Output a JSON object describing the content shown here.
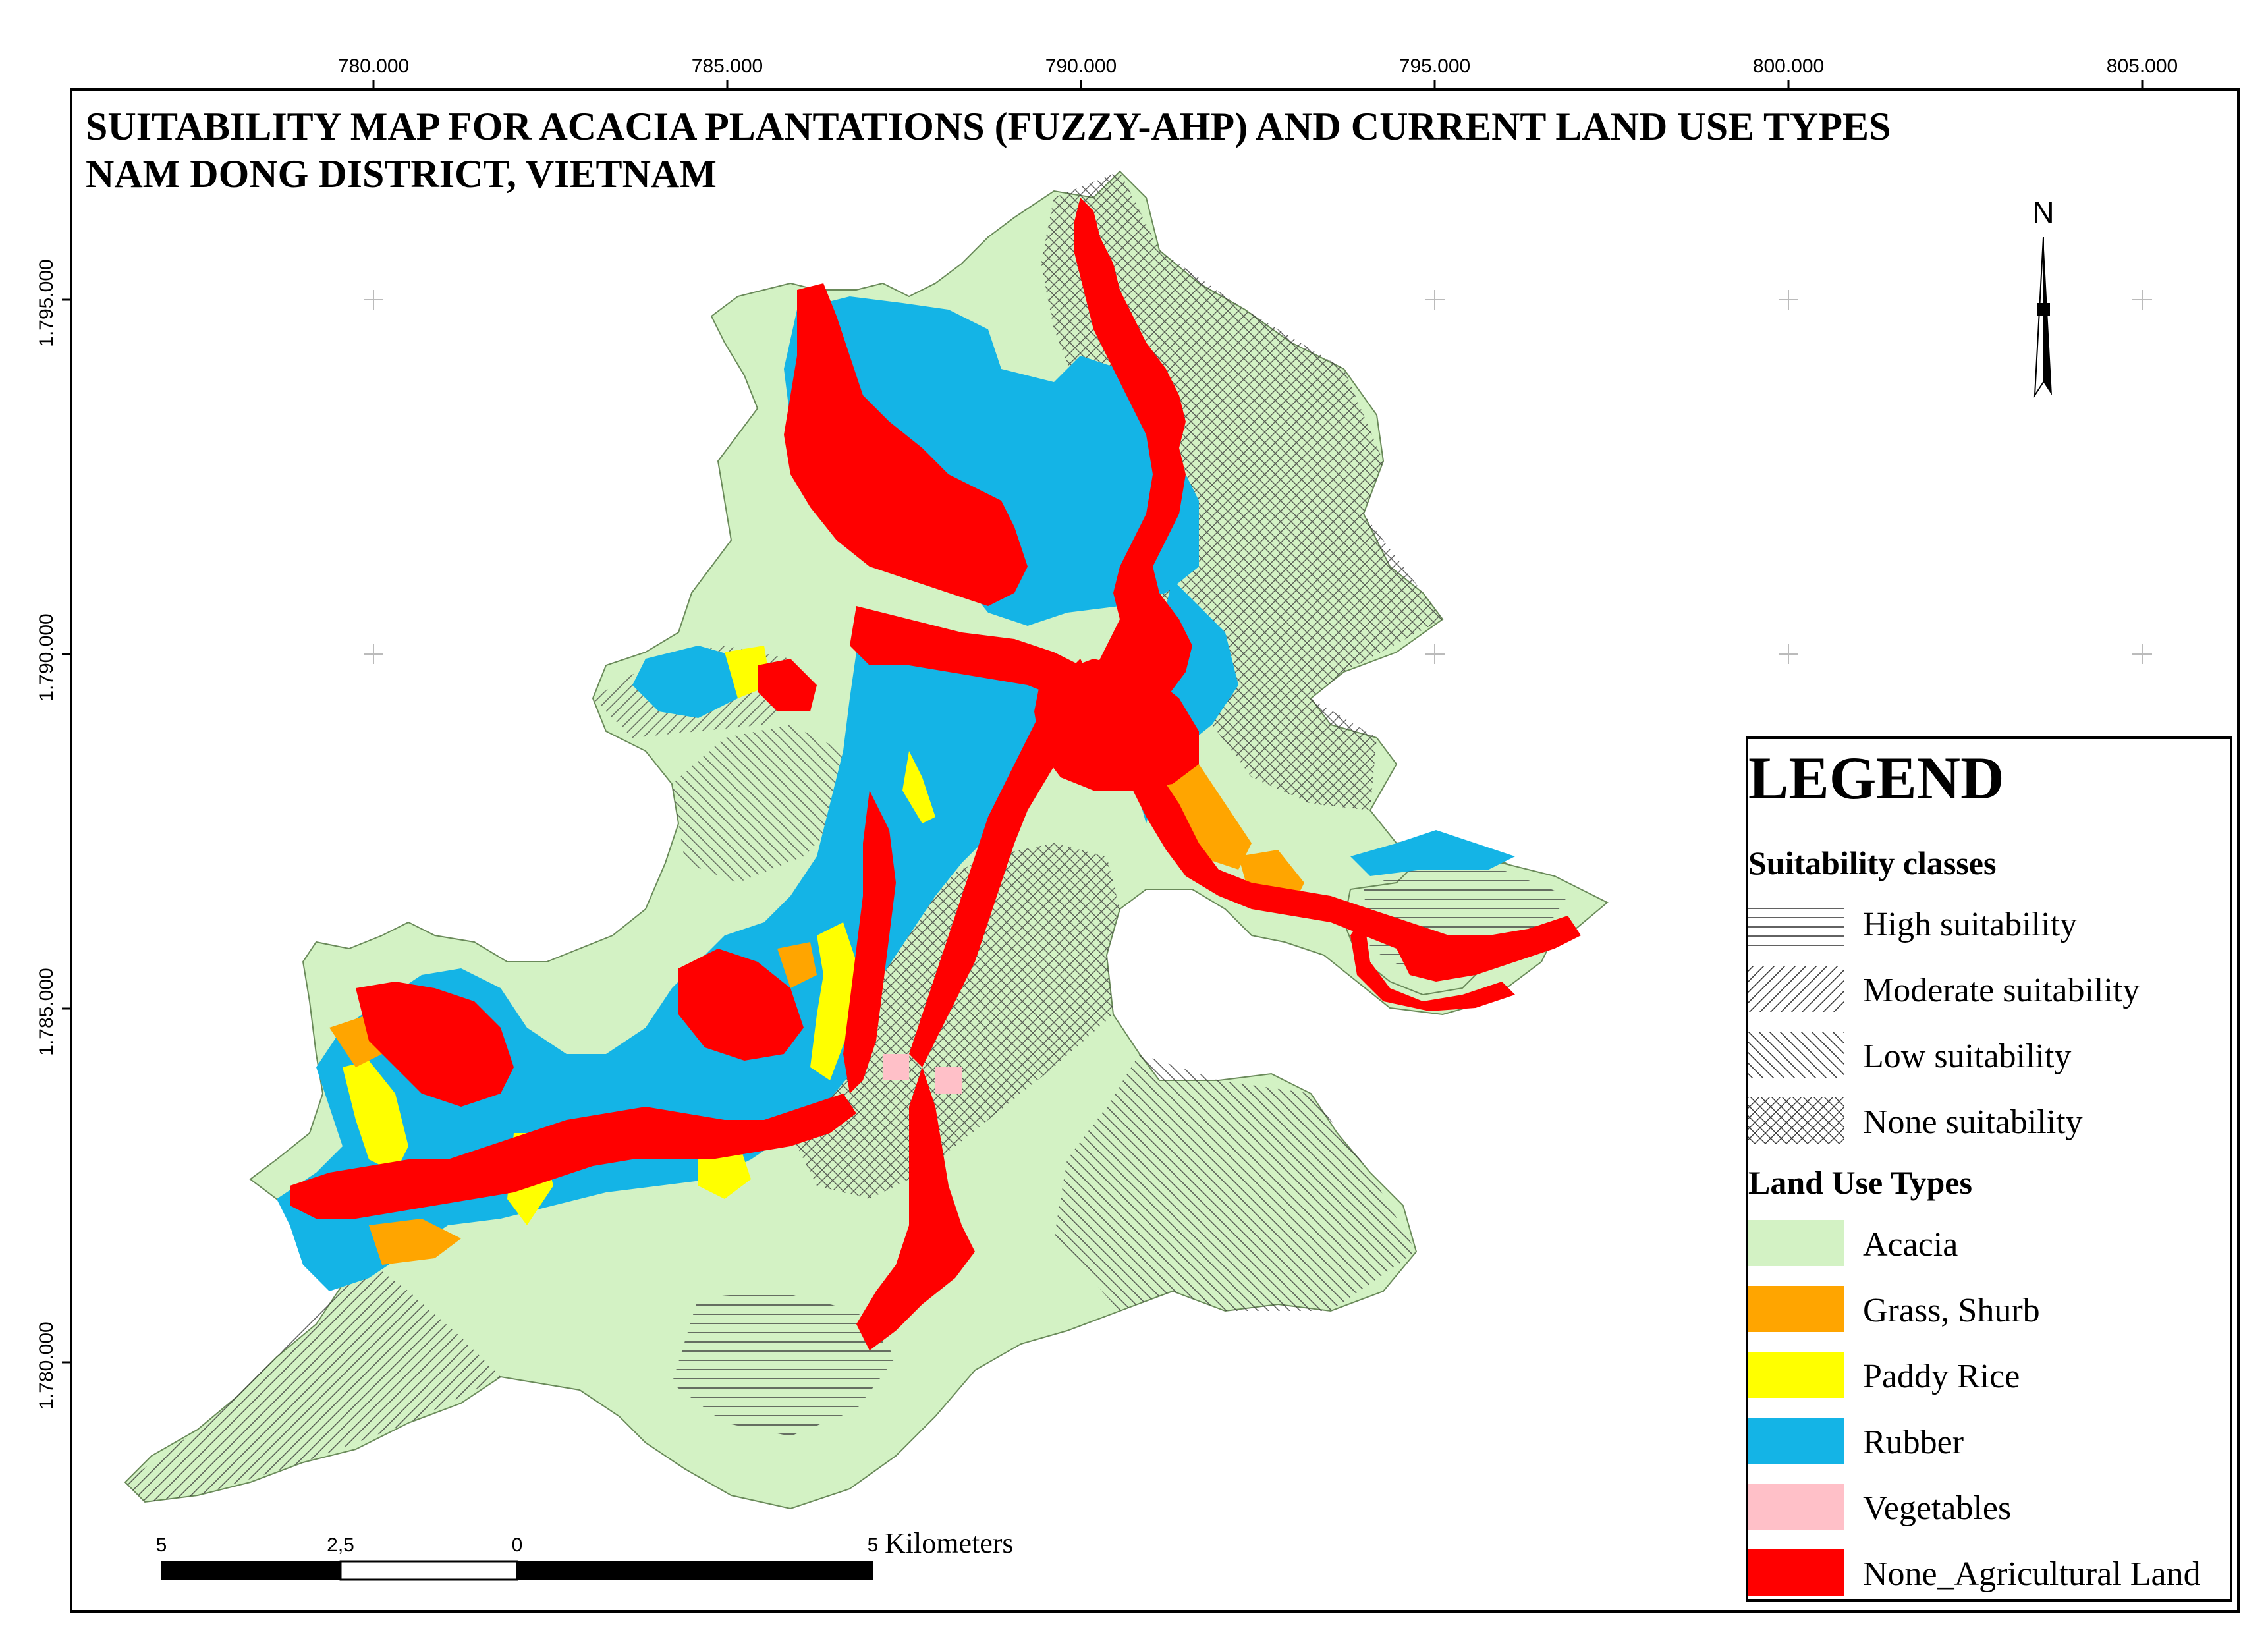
{
  "map": {
    "title_line1": "SUITABILITY MAP FOR ACACIA PLANTATIONS (FUZZY-AHP) AND CURRENT LAND USE TYPES",
    "title_line2": "NAM DONG DISTRICT, VIETNAM",
    "x_ticks": [
      "780.000",
      "785.000",
      "790.000",
      "795.000",
      "800.000",
      "805.000"
    ],
    "y_ticks": [
      "1.795.000",
      "1.790.000",
      "1.785.000",
      "1.780.000"
    ]
  },
  "north_arrow": {
    "label": "N"
  },
  "scale_bar": {
    "labels": [
      "5",
      "2,5",
      "0",
      "5"
    ],
    "unit": "Kilometers"
  },
  "legend": {
    "title": "LEGEND",
    "suitability_heading": "Suitability classes",
    "suitability": [
      {
        "label": "High suitability",
        "pattern": "horizontal"
      },
      {
        "label": "Moderate suitability",
        "pattern": "diag-up"
      },
      {
        "label": "Low suitability",
        "pattern": "diag-down"
      },
      {
        "label": "None suitability",
        "pattern": "cross"
      }
    ],
    "landuse_heading": "Land Use Types",
    "landuse": [
      {
        "label": "Acacia",
        "color": "#d3f2c4"
      },
      {
        "label": "Grass, Shurb",
        "color": "#ffa500"
      },
      {
        "label": "Paddy Rice",
        "color": "#ffff00"
      },
      {
        "label": "Rubber",
        "color": "#14b4e6"
      },
      {
        "label": "Vegetables",
        "color": "#ffc0c8"
      },
      {
        "label": "None_Agricultural Land",
        "color": "#ff0000"
      }
    ]
  }
}
